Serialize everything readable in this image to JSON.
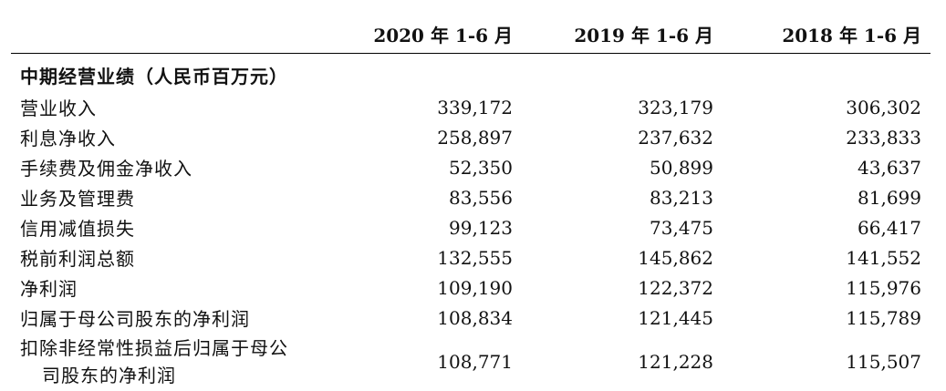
{
  "table": {
    "columns": [
      "2020 年 1-6 月",
      "2019 年 1-6 月",
      "2018 年 1-6 月"
    ],
    "section_title": "中期经营业绩（人民币百万元）",
    "rows": [
      {
        "label": "营业收入",
        "values": [
          "339,172",
          "323,179",
          "306,302"
        ]
      },
      {
        "label": "利息净收入",
        "values": [
          "258,897",
          "237,632",
          "233,833"
        ]
      },
      {
        "label": "手续费及佣金净收入",
        "values": [
          "52,350",
          "50,899",
          "43,637"
        ]
      },
      {
        "label": "业务及管理费",
        "values": [
          "83,556",
          "83,213",
          "81,699"
        ]
      },
      {
        "label": "信用减值损失",
        "values": [
          "99,123",
          "73,475",
          "66,417"
        ]
      },
      {
        "label": "税前利润总额",
        "values": [
          "132,555",
          "145,862",
          "141,552"
        ]
      },
      {
        "label": "净利润",
        "values": [
          "109,190",
          "122,372",
          "115,976"
        ]
      },
      {
        "label": "归属于母公司股东的净利润",
        "values": [
          "108,834",
          "121,445",
          "115,789"
        ]
      }
    ],
    "last_row": {
      "label_line1": "扣除非经常性损益后归属于母公",
      "label_line2": "司股东的净利润",
      "values": [
        "108,771",
        "121,228",
        "115,507"
      ]
    }
  }
}
